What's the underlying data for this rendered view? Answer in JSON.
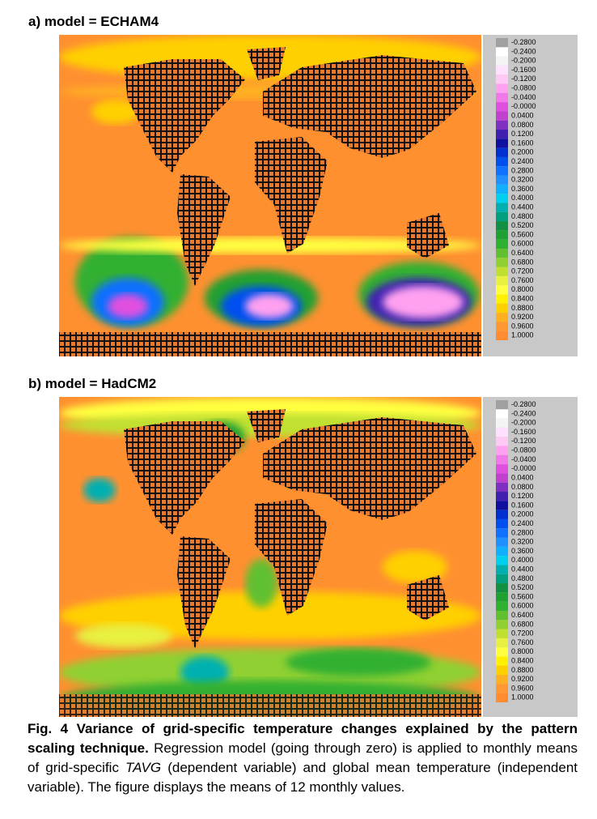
{
  "panels": [
    {
      "title": "a) model = ECHAM4"
    },
    {
      "title": "b) model = HadCM2"
    }
  ],
  "legend": [
    {
      "label": "-0.2800",
      "color": "#a0a0a0"
    },
    {
      "label": "-0.2400",
      "color": "#ffffff"
    },
    {
      "label": "-0.2000",
      "color": "#f4f4f4"
    },
    {
      "label": "-0.1600",
      "color": "#ffe0ff"
    },
    {
      "label": "-0.1200",
      "color": "#ffc8f5"
    },
    {
      "label": "-0.0800",
      "color": "#ffa0f0"
    },
    {
      "label": "-0.0400",
      "color": "#f078e8"
    },
    {
      "label": "-0.0000",
      "color": "#e050e0"
    },
    {
      "label": "0.0400",
      "color": "#c040d0"
    },
    {
      "label": "0.0800",
      "color": "#8030c0"
    },
    {
      "label": "0.1200",
      "color": "#4020b0"
    },
    {
      "label": "0.1600",
      "color": "#1010a0"
    },
    {
      "label": "0.2000",
      "color": "#0030d0"
    },
    {
      "label": "0.2400",
      "color": "#0050f0"
    },
    {
      "label": "0.2800",
      "color": "#1070ff"
    },
    {
      "label": "0.3200",
      "color": "#2090ff"
    },
    {
      "label": "0.3600",
      "color": "#10b0ff"
    },
    {
      "label": "0.4000",
      "color": "#00d0f0"
    },
    {
      "label": "0.4400",
      "color": "#00b0b0"
    },
    {
      "label": "0.4800",
      "color": "#00a080"
    },
    {
      "label": "0.5200",
      "color": "#109040"
    },
    {
      "label": "0.5600",
      "color": "#20a030"
    },
    {
      "label": "0.6000",
      "color": "#30b030"
    },
    {
      "label": "0.6400",
      "color": "#60c030"
    },
    {
      "label": "0.6800",
      "color": "#90d030"
    },
    {
      "label": "0.7200",
      "color": "#c0e030"
    },
    {
      "label": "0.7600",
      "color": "#e8f040"
    },
    {
      "label": "0.8000",
      "color": "#ffff40"
    },
    {
      "label": "0.8400",
      "color": "#fff000"
    },
    {
      "label": "0.8800",
      "color": "#ffd000"
    },
    {
      "label": "0.9200",
      "color": "#ffb020"
    },
    {
      "label": "0.9600",
      "color": "#ff9830"
    },
    {
      "label": "1.0000",
      "color": "#ff8c30"
    }
  ],
  "caption": {
    "lead": "Fig. 4  Variance of grid-specific temperature changes explained by the pattern scaling technique.",
    "body_1": "Regression model (going through zero) is applied to monthly means of grid-specific",
    "italic": "TAVG",
    "body_2": "(dependent variable) and global mean temperature (independent variable). The figure displays the means of 12 monthly values."
  }
}
